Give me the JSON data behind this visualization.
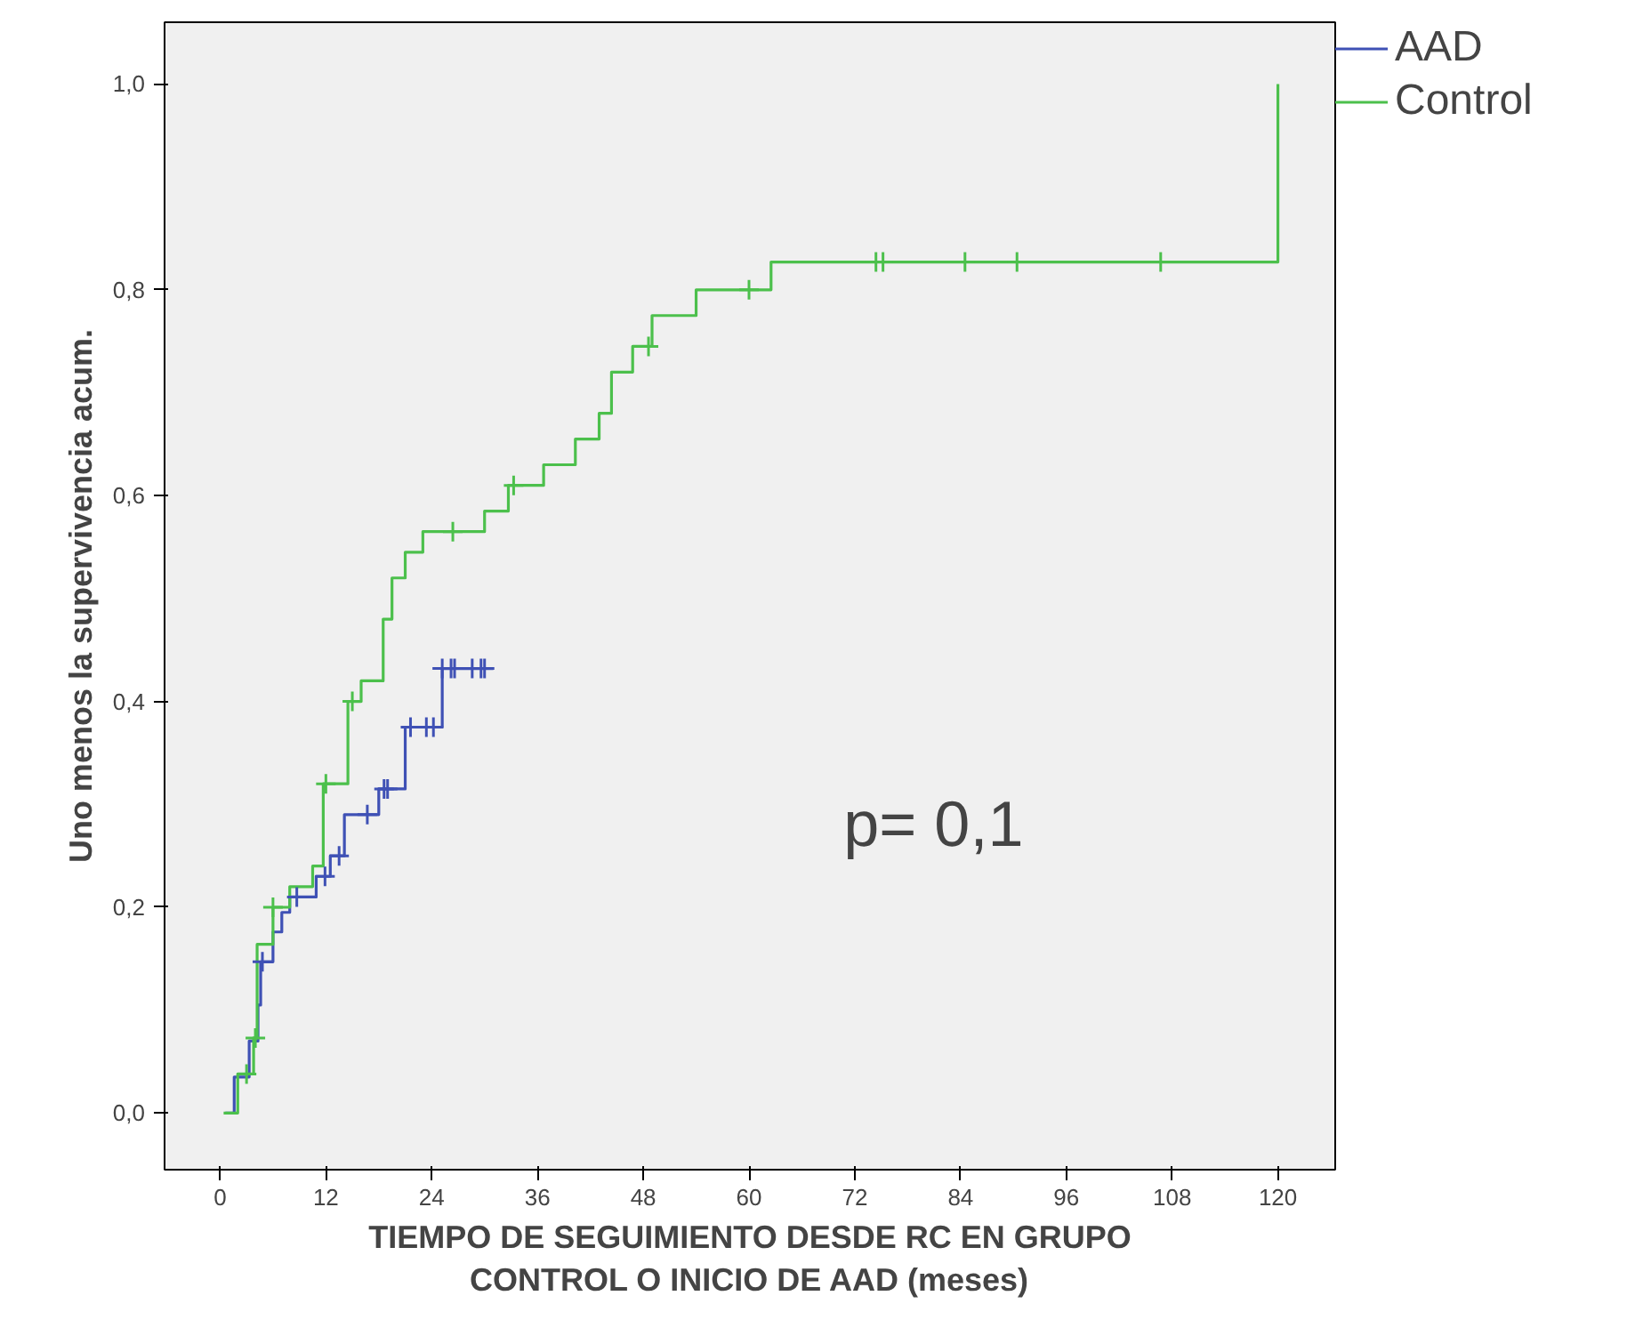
{
  "chart_data": {
    "type": "step",
    "xlabel": "TIEMPO DE SEGUIMIENTO DESDE RC EN GRUPO\nCONTROL O INICIO DE AAD (meses)",
    "ylabel": "Uno menos la supervivencia acum.",
    "annotations": [
      "p= 0,1"
    ],
    "xlim": [
      -6.3,
      126.5
    ],
    "ylim": [
      -0.055,
      1.06
    ],
    "xticks": [
      0,
      12,
      24,
      36,
      48,
      60,
      72,
      84,
      96,
      108,
      120
    ],
    "yticks": [
      {
        "value": 0,
        "label": "0,0"
      },
      {
        "value": 0.2,
        "label": "0,2"
      },
      {
        "value": 0.4,
        "label": "0,4"
      },
      {
        "value": 0.6,
        "label": "0,6"
      },
      {
        "value": 0.8,
        "label": "0,8"
      },
      {
        "value": 1.0,
        "label": "1,0"
      }
    ],
    "grid": false,
    "legend": "top right",
    "series": [
      {
        "name": "AAD",
        "color": "#3f51b5",
        "x": [
          0.6,
          1.6,
          3.3,
          4.3,
          4.6,
          6,
          7,
          7.9,
          10.9,
          12.5,
          14.1,
          18,
          21,
          25.2,
          31
        ],
        "values": [
          0,
          0.035,
          0.07,
          0.105,
          0.147,
          0.176,
          0.195,
          0.21,
          0.23,
          0.25,
          0.29,
          0.315,
          0.375,
          0.432,
          0.432
        ]
      },
      {
        "name": "Control",
        "color": "#4cc04c",
        "x": [
          0.4,
          2,
          3.8,
          4.2,
          6,
          7.9,
          10.5,
          11.7,
          14.5,
          16,
          18.5,
          19.5,
          21,
          23,
          30,
          32.7,
          36.7,
          40.3,
          43,
          44.4,
          46.8,
          49,
          54,
          62.5,
          120,
          120
        ],
        "values": [
          0,
          0.038,
          0.073,
          0.164,
          0.2,
          0.22,
          0.24,
          0.32,
          0.4,
          0.42,
          0.48,
          0.52,
          0.545,
          0.565,
          0.585,
          0.61,
          0.63,
          0.655,
          0.68,
          0.72,
          0.745,
          0.775,
          0.8,
          0.827,
          0.827,
          1.0
        ]
      },
      {
        "type": "scatter",
        "marker": "cross",
        "color": "#3f51b5",
        "x": [
          4.8,
          8.7,
          11.9,
          13.5,
          16.7,
          18.6,
          19,
          21.6,
          23.4,
          24.2,
          25.2,
          26.2,
          26.6,
          28.6,
          29.6,
          30
        ],
        "values": [
          0.147,
          0.21,
          0.23,
          0.25,
          0.29,
          0.315,
          0.315,
          0.375,
          0.375,
          0.375,
          0.432,
          0.432,
          0.432,
          0.432,
          0.432,
          0.432
        ]
      },
      {
        "type": "scatter",
        "marker": "cross",
        "color": "#4cc04c",
        "x": [
          3,
          4,
          6,
          12,
          15,
          26.4,
          33.3,
          48.6,
          60,
          74.4,
          75.2,
          84.5,
          90.4,
          106.7
        ],
        "values": [
          0.038,
          0.073,
          0.2,
          0.32,
          0.4,
          0.565,
          0.61,
          0.745,
          0.8,
          0.827,
          0.827,
          0.827,
          0.827,
          0.827
        ]
      }
    ]
  }
}
